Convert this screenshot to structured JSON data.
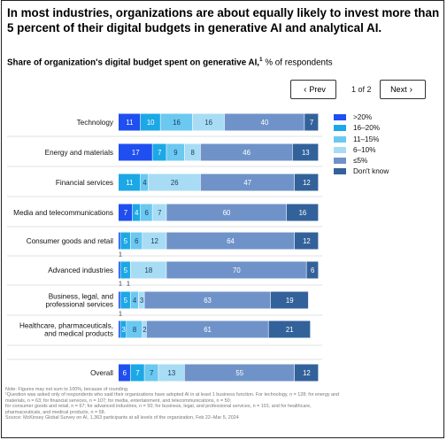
{
  "header": {
    "title_line1": "In most industries, organizations are about equally likely to invest more than",
    "title_line2": "5 percent of their digital budgets in generative AI and analytical AI.",
    "subtitle_bold": "Share of organization's digital budget spent on generative AI,",
    "subtitle_sup": "1",
    "subtitle_rest": " % of respondents"
  },
  "pagination": {
    "prev_label": "Prev",
    "next_label": "Next",
    "page_text": "1 of 2"
  },
  "colors": {
    "gt20": "#1f4ff0",
    "16to20": "#1ca8e6",
    "11to15": "#6bc8f0",
    "6to10": "#a8dcf5",
    "le5": "#6f93c9",
    "dont_know": "#33629b",
    "label_dark": "#ffffff"
  },
  "chart_data": {
    "type": "bar",
    "orientation": "horizontal",
    "stacked": true,
    "title": "Share of organization's digital budget spent on generative AI, % of respondents",
    "categories": [
      "Technology",
      "Energy and materials",
      "Financial services",
      "Media and telecommunications",
      "Consumer goods and retail",
      "Advanced industries",
      "Business, legal, and professional services",
      "Healthcare, pharmaceuticals, and medical products",
      "Overall"
    ],
    "series": [
      {
        "name": ">20%",
        "color": "#1f4ff0",
        "values": [
          11,
          17,
          0,
          7,
          1,
          1,
          1,
          1,
          6
        ]
      },
      {
        "name": "16–20%",
        "color": "#1ca8e6",
        "values": [
          10,
          7,
          11,
          4,
          5,
          5,
          5,
          3,
          7
        ]
      },
      {
        "name": "11–15%",
        "color": "#6bc8f0",
        "values": [
          16,
          9,
          4,
          6,
          6,
          0,
          4,
          8,
          7
        ]
      },
      {
        "name": "6–10%",
        "color": "#a8dcf5",
        "values": [
          16,
          8,
          26,
          7,
          12,
          18,
          3,
          2,
          13
        ]
      },
      {
        "name": "≤5%",
        "color": "#6f93c9",
        "values": [
          40,
          46,
          47,
          60,
          64,
          70,
          63,
          61,
          55
        ]
      },
      {
        "name": "Don't know",
        "color": "#33629b",
        "values": [
          7,
          13,
          12,
          16,
          12,
          6,
          19,
          21,
          12
        ]
      }
    ],
    "label_below": [
      {
        "category": "Consumer goods and retail",
        "labels": [
          "1"
        ]
      },
      {
        "category": "Advanced industries",
        "labels": [
          "1",
          "1"
        ]
      },
      {
        "category": "Business, legal, and professional services",
        "labels": [
          "1"
        ]
      }
    ],
    "hidden_labels": [
      {
        "category": "Consumer goods and retail",
        "series": ">20%"
      },
      {
        "category": "Advanced industries",
        "series": ">20%"
      },
      {
        "category": "Business, legal, and professional services",
        "series": ">20%"
      },
      {
        "category": "Healthcare, pharmaceuticals, and medical products",
        "series": ">20%"
      }
    ],
    "xlim": [
      0,
      100
    ],
    "grid": false,
    "legend_position": "right"
  },
  "notes": {
    "line1": "Note: Figures may not sum to 100%, because of rounding.",
    "line2": "¹Question was asked only of respondents who said their organizations have adopted AI in at least 1 business function. For technology, n = 128; for energy and",
    "line3": "materials, n = 63; for financial services, n = 107; for media, entertainment, and telecommunications, n = 50;",
    "line4": "for consumer goods and retail, n = 67; for advanced industries, n = 50; for business, legal, and professional services, n = 101; and for healthcare,",
    "line5": "pharmaceuticals, and medical products, n = 58.",
    "line6": "Source: McKinsey Global Survey on AI, 1,363 participants at all levels of the organization, Feb 22–Mar 5, 2024"
  }
}
